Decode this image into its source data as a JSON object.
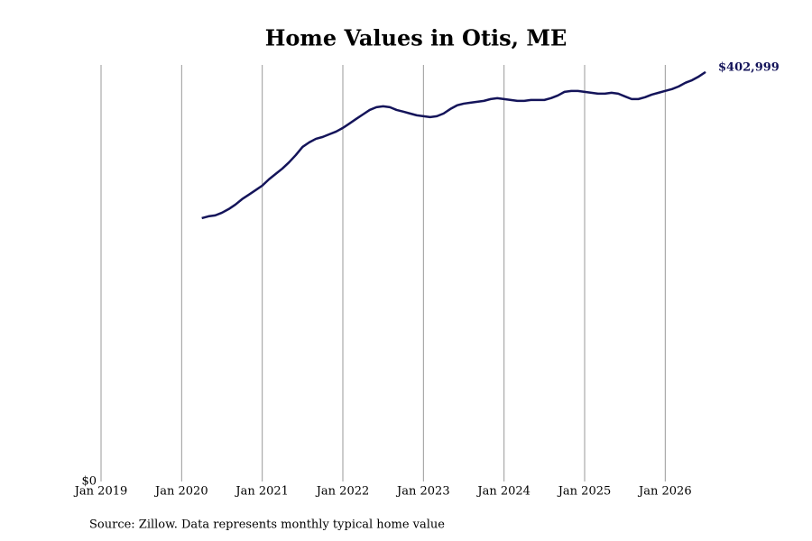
{
  "chart_data": {
    "type": "line",
    "title": "Home Values in Otis, ME",
    "source": "Source: Zillow. Data represents monthly typical home value",
    "xlim": [
      "Jan 2019",
      "Jul 2026"
    ],
    "xticks": [
      "Jan 2019",
      "Jan 2020",
      "Jan 2021",
      "Jan 2022",
      "Jan 2023",
      "Jan 2024",
      "Jan 2025",
      "Jan 2026"
    ],
    "ylim": [
      0,
      410000
    ],
    "yticks": [
      {
        "value": 0,
        "label": "$0"
      }
    ],
    "grid": true,
    "x": [
      "Apr 2020",
      "May 2020",
      "Jun 2020",
      "Jul 2020",
      "Aug 2020",
      "Sep 2020",
      "Oct 2020",
      "Nov 2020",
      "Dec 2020",
      "Jan 2021",
      "Feb 2021",
      "Mar 2021",
      "Apr 2021",
      "May 2021",
      "Jun 2021",
      "Jul 2021",
      "Aug 2021",
      "Sep 2021",
      "Oct 2021",
      "Nov 2021",
      "Dec 2021",
      "Jan 2022",
      "Feb 2022",
      "Mar 2022",
      "Apr 2022",
      "May 2022",
      "Jun 2022",
      "Jul 2022",
      "Aug 2022",
      "Sep 2022",
      "Oct 2022",
      "Nov 2022",
      "Dec 2022",
      "Jan 2023",
      "Feb 2023",
      "Mar 2023",
      "Apr 2023",
      "May 2023",
      "Jun 2023",
      "Jul 2023",
      "Aug 2023",
      "Sep 2023",
      "Oct 2023",
      "Nov 2023",
      "Dec 2023",
      "Jan 2024",
      "Feb 2024",
      "Mar 2024",
      "Apr 2024",
      "May 2024",
      "Jun 2024",
      "Jul 2024",
      "Aug 2024",
      "Sep 2024",
      "Oct 2024",
      "Nov 2024",
      "Dec 2024",
      "Jan 2025",
      "Feb 2025",
      "Mar 2025",
      "Apr 2025",
      "May 2025",
      "Jun 2025",
      "Jul 2025",
      "Aug 2025",
      "Sep 2025",
      "Oct 2025",
      "Nov 2025",
      "Dec 2025",
      "Jan 2026",
      "Feb 2026",
      "Mar 2026",
      "Apr 2026",
      "May 2026",
      "Jun 2026",
      "Jul 2026"
    ],
    "series": [
      {
        "name": "Home value",
        "color": "#14145a",
        "values": [
          259200,
          261000,
          261900,
          264500,
          268100,
          272500,
          277900,
          282300,
          286700,
          291200,
          297400,
          302700,
          308000,
          314200,
          321300,
          329300,
          333800,
          337300,
          339100,
          341800,
          344400,
          348000,
          352400,
          356900,
          361300,
          365700,
          368400,
          369300,
          368400,
          365700,
          364000,
          362200,
          360400,
          359500,
          358600,
          359500,
          362200,
          366600,
          370200,
          371900,
          372800,
          373700,
          374600,
          376400,
          377300,
          376400,
          375500,
          374600,
          374600,
          375500,
          375500,
          375500,
          377300,
          379900,
          383500,
          384400,
          384400,
          383500,
          382600,
          381700,
          381700,
          382600,
          381700,
          379000,
          376400,
          376400,
          378200,
          380800,
          382600,
          384400,
          386200,
          388800,
          392400,
          395000,
          398600,
          402999
        ],
        "value_labels": [
          null,
          null,
          null,
          null,
          null,
          null,
          null,
          null,
          null,
          null,
          null,
          null,
          null,
          null,
          null,
          null,
          null,
          null,
          null,
          null,
          null,
          null,
          null,
          null,
          null,
          null,
          null,
          null,
          null,
          null,
          null,
          null,
          null,
          null,
          null,
          null,
          null,
          null,
          null,
          null,
          null,
          null,
          null,
          null,
          null,
          null,
          null,
          null,
          null,
          null,
          null,
          null,
          null,
          null,
          null,
          null,
          null,
          null,
          null,
          null,
          null,
          null,
          null,
          null,
          null,
          null,
          null,
          null,
          null,
          null,
          null,
          null,
          null,
          null,
          null,
          "$402,999"
        ]
      }
    ]
  }
}
